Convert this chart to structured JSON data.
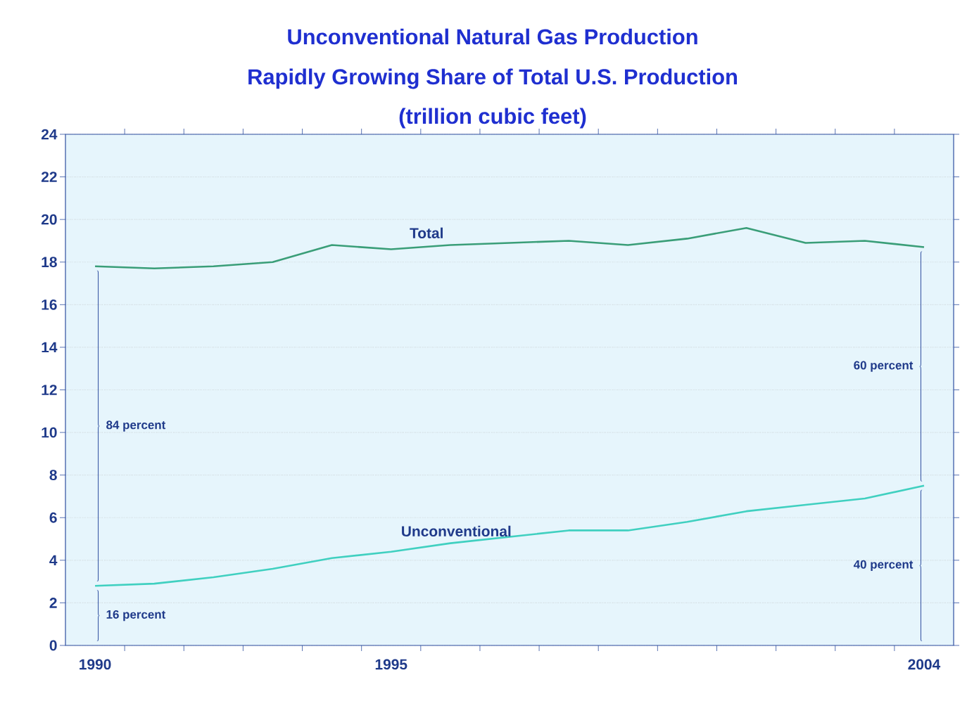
{
  "chart_data": {
    "type": "line",
    "title": "Unconventional Natural Gas Production",
    "subtitle": "Rapidly Growing Share of Total U.S. Production",
    "ylabel": "(trillion cubic feet)",
    "categories": [
      "1990",
      null,
      null,
      null,
      null,
      "1995",
      null,
      null,
      null,
      null,
      null,
      null,
      null,
      null,
      "2004"
    ],
    "series": [
      {
        "name": "Total",
        "color": "#3a9e78",
        "values": [
          17.8,
          17.7,
          17.8,
          18.0,
          18.8,
          18.6,
          18.8,
          18.9,
          19.0,
          18.8,
          19.1,
          19.6,
          18.9,
          19.0,
          18.7
        ]
      },
      {
        "name": "Unconventional",
        "color": "#40d0c0",
        "values": [
          2.8,
          2.9,
          3.2,
          3.6,
          4.1,
          4.4,
          4.8,
          5.1,
          5.4,
          5.4,
          5.8,
          6.3,
          6.6,
          6.9,
          7.5
        ]
      }
    ],
    "ylim": [
      0,
      24
    ],
    "yticks": [
      0,
      2,
      4,
      6,
      8,
      10,
      12,
      14,
      16,
      18,
      20,
      22,
      24
    ],
    "grid": "y",
    "marker": "none",
    "line_style": "solid",
    "annotations": [
      "84 percent",
      "16 percent",
      "60 percent",
      "40 percent"
    ]
  }
}
